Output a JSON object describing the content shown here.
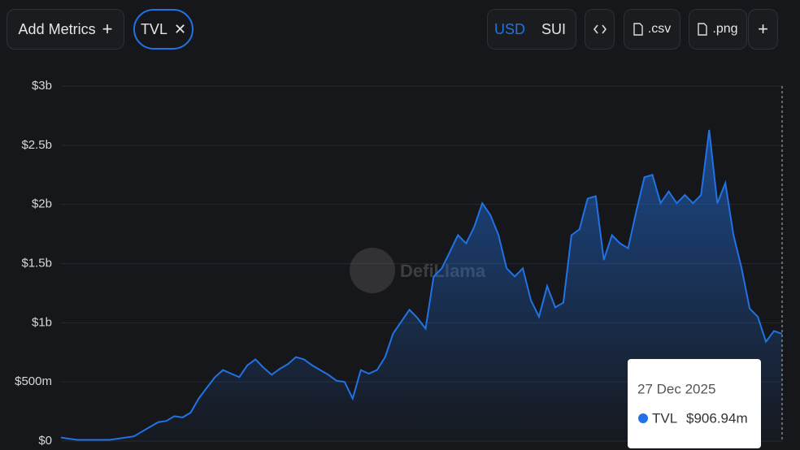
{
  "toolbar": {
    "add_metrics": "Add Metrics",
    "currencies": [
      "USD",
      "SUI"
    ],
    "downloads": [
      ".csv",
      ".png"
    ]
  },
  "chart_data": {
    "type": "area",
    "watermark": "DefiLlama",
    "series": [
      {
        "name": "TVL",
        "color": "#2172e5",
        "values": [
          0.03,
          0.02,
          0.01,
          0.01,
          0.01,
          0.01,
          0.01,
          0.02,
          0.03,
          0.04,
          0.08,
          0.12,
          0.16,
          0.17,
          0.21,
          0.2,
          0.24,
          0.36,
          0.45,
          0.54,
          0.6,
          0.57,
          0.54,
          0.64,
          0.69,
          0.62,
          0.56,
          0.61,
          0.65,
          0.71,
          0.69,
          0.64,
          0.6,
          0.56,
          0.51,
          0.5,
          0.36,
          0.6,
          0.57,
          0.6,
          0.71,
          0.91,
          1.01,
          1.11,
          1.04,
          0.95,
          1.39,
          1.46,
          1.6,
          1.74,
          1.67,
          1.81,
          2.01,
          1.91,
          1.74,
          1.46,
          1.39,
          1.46,
          1.19,
          1.05,
          1.31,
          1.13,
          1.17,
          1.74,
          1.79,
          2.05,
          2.07,
          1.53,
          1.74,
          1.67,
          1.63,
          1.94,
          2.23,
          2.25,
          2.01,
          2.11,
          2.01,
          2.08,
          2.01,
          2.08,
          2.63,
          2.01,
          2.18,
          1.74,
          1.46,
          1.12,
          1.05,
          0.84,
          0.93,
          0.90694
        ]
      }
    ],
    "ylim": [
      0,
      3
    ],
    "yticks": [
      {
        "value": 0,
        "label": "$0"
      },
      {
        "value": 0.5,
        "label": "$500m"
      },
      {
        "value": 1,
        "label": "$1b"
      },
      {
        "value": 1.5,
        "label": "$1.5b"
      },
      {
        "value": 2,
        "label": "$2b"
      },
      {
        "value": 2.5,
        "label": "$2.5b"
      },
      {
        "value": 3,
        "label": "$3b"
      }
    ],
    "grid": true,
    "tooltip": {
      "date": "27 Dec 2025",
      "value": 0.90694,
      "value_label": "$906.94m"
    }
  }
}
